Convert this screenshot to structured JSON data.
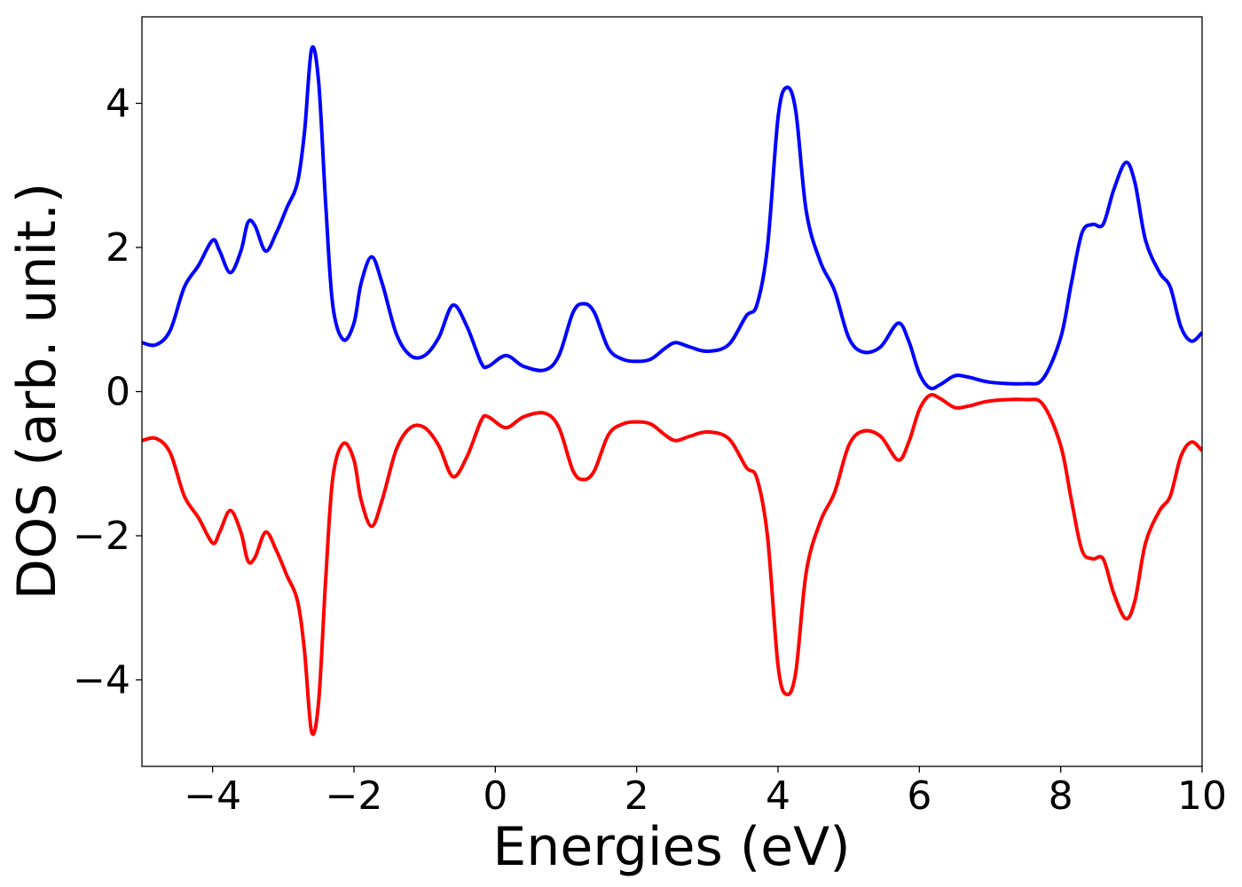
{
  "chart_data": {
    "type": "line",
    "title": "",
    "xlabel": "Energies (eV)",
    "ylabel": "DOS (arb. unit.)",
    "xlim": [
      -5,
      10
    ],
    "ylim": [
      -5.2,
      5.2
    ],
    "xticks": [
      -4,
      -2,
      0,
      2,
      4,
      6,
      8,
      10
    ],
    "yticks": [
      -4,
      -2,
      0,
      2,
      4
    ],
    "xtick_labels": [
      "−4",
      "−2",
      "0",
      "2",
      "4",
      "6",
      "8",
      "10"
    ],
    "ytick_labels": [
      "−4",
      "−2",
      "0",
      "2",
      "4"
    ],
    "grid": false,
    "legend": "none",
    "series": [
      {
        "color": "#0000ff",
        "points": [
          [
            -5.0,
            0.68
          ],
          [
            -4.8,
            0.65
          ],
          [
            -4.6,
            0.85
          ],
          [
            -4.4,
            1.45
          ],
          [
            -4.2,
            1.75
          ],
          [
            -4.0,
            2.1
          ],
          [
            -3.9,
            1.95
          ],
          [
            -3.75,
            1.65
          ],
          [
            -3.6,
            1.95
          ],
          [
            -3.5,
            2.35
          ],
          [
            -3.4,
            2.3
          ],
          [
            -3.25,
            1.95
          ],
          [
            -3.1,
            2.2
          ],
          [
            -2.95,
            2.55
          ],
          [
            -2.8,
            2.9
          ],
          [
            -2.7,
            3.6
          ],
          [
            -2.6,
            4.75
          ],
          [
            -2.5,
            4.3
          ],
          [
            -2.4,
            2.6
          ],
          [
            -2.3,
            1.2
          ],
          [
            -2.15,
            0.72
          ],
          [
            -2.0,
            0.95
          ],
          [
            -1.9,
            1.5
          ],
          [
            -1.75,
            1.87
          ],
          [
            -1.6,
            1.5
          ],
          [
            -1.4,
            0.8
          ],
          [
            -1.2,
            0.5
          ],
          [
            -1.0,
            0.5
          ],
          [
            -0.8,
            0.75
          ],
          [
            -0.6,
            1.2
          ],
          [
            -0.4,
            0.9
          ],
          [
            -0.2,
            0.4
          ],
          [
            -0.1,
            0.35
          ],
          [
            0.15,
            0.5
          ],
          [
            0.4,
            0.35
          ],
          [
            0.7,
            0.3
          ],
          [
            0.9,
            0.5
          ],
          [
            1.1,
            1.1
          ],
          [
            1.25,
            1.22
          ],
          [
            1.4,
            1.1
          ],
          [
            1.6,
            0.6
          ],
          [
            1.8,
            0.45
          ],
          [
            2.0,
            0.42
          ],
          [
            2.2,
            0.45
          ],
          [
            2.4,
            0.6
          ],
          [
            2.55,
            0.68
          ],
          [
            2.75,
            0.62
          ],
          [
            3.0,
            0.56
          ],
          [
            3.3,
            0.65
          ],
          [
            3.55,
            1.05
          ],
          [
            3.7,
            1.2
          ],
          [
            3.85,
            2.0
          ],
          [
            4.0,
            3.8
          ],
          [
            4.12,
            4.22
          ],
          [
            4.25,
            3.9
          ],
          [
            4.4,
            2.5
          ],
          [
            4.6,
            1.8
          ],
          [
            4.8,
            1.4
          ],
          [
            5.0,
            0.75
          ],
          [
            5.2,
            0.55
          ],
          [
            5.45,
            0.62
          ],
          [
            5.7,
            0.95
          ],
          [
            5.85,
            0.7
          ],
          [
            6.0,
            0.25
          ],
          [
            6.15,
            0.05
          ],
          [
            6.3,
            0.1
          ],
          [
            6.5,
            0.22
          ],
          [
            6.7,
            0.2
          ],
          [
            7.0,
            0.13
          ],
          [
            7.5,
            0.11
          ],
          [
            7.75,
            0.18
          ],
          [
            8.0,
            0.75
          ],
          [
            8.15,
            1.5
          ],
          [
            8.3,
            2.2
          ],
          [
            8.45,
            2.32
          ],
          [
            8.6,
            2.32
          ],
          [
            8.75,
            2.8
          ],
          [
            8.92,
            3.18
          ],
          [
            9.05,
            2.9
          ],
          [
            9.2,
            2.1
          ],
          [
            9.4,
            1.65
          ],
          [
            9.55,
            1.45
          ],
          [
            9.7,
            0.9
          ],
          [
            9.85,
            0.7
          ],
          [
            10.0,
            0.82
          ]
        ]
      },
      {
        "color": "#ff0000",
        "points": [
          [
            -5.0,
            -0.68
          ],
          [
            -4.8,
            -0.65
          ],
          [
            -4.6,
            -0.85
          ],
          [
            -4.4,
            -1.45
          ],
          [
            -4.2,
            -1.75
          ],
          [
            -4.0,
            -2.1
          ],
          [
            -3.9,
            -1.95
          ],
          [
            -3.75,
            -1.65
          ],
          [
            -3.6,
            -1.95
          ],
          [
            -3.5,
            -2.35
          ],
          [
            -3.4,
            -2.3
          ],
          [
            -3.25,
            -1.95
          ],
          [
            -3.1,
            -2.2
          ],
          [
            -2.95,
            -2.55
          ],
          [
            -2.8,
            -2.9
          ],
          [
            -2.7,
            -3.6
          ],
          [
            -2.6,
            -4.72
          ],
          [
            -2.5,
            -4.3
          ],
          [
            -2.4,
            -2.6
          ],
          [
            -2.3,
            -1.2
          ],
          [
            -2.15,
            -0.72
          ],
          [
            -2.0,
            -0.95
          ],
          [
            -1.9,
            -1.5
          ],
          [
            -1.75,
            -1.87
          ],
          [
            -1.6,
            -1.5
          ],
          [
            -1.4,
            -0.8
          ],
          [
            -1.2,
            -0.5
          ],
          [
            -1.0,
            -0.5
          ],
          [
            -0.8,
            -0.75
          ],
          [
            -0.6,
            -1.18
          ],
          [
            -0.4,
            -0.9
          ],
          [
            -0.2,
            -0.4
          ],
          [
            -0.1,
            -0.35
          ],
          [
            0.15,
            -0.5
          ],
          [
            0.4,
            -0.35
          ],
          [
            0.7,
            -0.3
          ],
          [
            0.9,
            -0.5
          ],
          [
            1.1,
            -1.1
          ],
          [
            1.25,
            -1.22
          ],
          [
            1.4,
            -1.1
          ],
          [
            1.6,
            -0.6
          ],
          [
            1.8,
            -0.45
          ],
          [
            2.0,
            -0.42
          ],
          [
            2.2,
            -0.45
          ],
          [
            2.4,
            -0.6
          ],
          [
            2.55,
            -0.68
          ],
          [
            2.75,
            -0.62
          ],
          [
            3.0,
            -0.56
          ],
          [
            3.3,
            -0.65
          ],
          [
            3.55,
            -1.05
          ],
          [
            3.7,
            -1.2
          ],
          [
            3.85,
            -2.0
          ],
          [
            4.0,
            -3.8
          ],
          [
            4.12,
            -4.2
          ],
          [
            4.25,
            -3.9
          ],
          [
            4.4,
            -2.5
          ],
          [
            4.6,
            -1.8
          ],
          [
            4.8,
            -1.4
          ],
          [
            5.0,
            -0.75
          ],
          [
            5.2,
            -0.55
          ],
          [
            5.45,
            -0.62
          ],
          [
            5.7,
            -0.95
          ],
          [
            5.85,
            -0.7
          ],
          [
            6.0,
            -0.25
          ],
          [
            6.15,
            -0.05
          ],
          [
            6.3,
            -0.1
          ],
          [
            6.5,
            -0.22
          ],
          [
            6.7,
            -0.2
          ],
          [
            7.0,
            -0.13
          ],
          [
            7.5,
            -0.11
          ],
          [
            7.75,
            -0.18
          ],
          [
            8.0,
            -0.75
          ],
          [
            8.15,
            -1.5
          ],
          [
            8.3,
            -2.2
          ],
          [
            8.45,
            -2.32
          ],
          [
            8.6,
            -2.32
          ],
          [
            8.75,
            -2.8
          ],
          [
            8.92,
            -3.15
          ],
          [
            9.05,
            -2.9
          ],
          [
            9.2,
            -2.1
          ],
          [
            9.4,
            -1.65
          ],
          [
            9.55,
            -1.45
          ],
          [
            9.7,
            -0.9
          ],
          [
            9.85,
            -0.7
          ],
          [
            10.0,
            -0.82
          ]
        ]
      }
    ]
  }
}
